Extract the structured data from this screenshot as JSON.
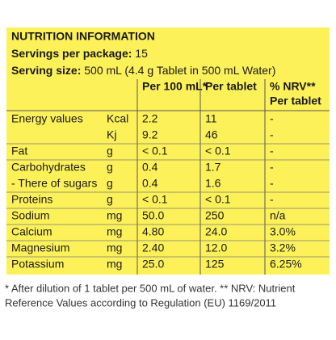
{
  "header": {
    "title": "NUTRITION INFORMATION",
    "servings_label": "Servings per package:",
    "servings_value": "15",
    "serving_size_label": "Serving size:",
    "serving_size_value": "500 mL (4.4 g Tablet in 500 mL Water)"
  },
  "table": {
    "columns": [
      "Per 100 mL*",
      "Per tablet",
      "% NRV**",
      "Per tablet"
    ],
    "rows": [
      [
        "Energy values",
        "Kcal",
        "2.2",
        "11",
        "-"
      ],
      [
        "",
        "Kj",
        "9.2",
        "46",
        "-"
      ],
      [
        "Fat",
        "g",
        "< 0.1",
        "< 0.1",
        "-"
      ],
      [
        "Carbohydrates",
        "g",
        "0.4",
        "1.7",
        "-"
      ],
      [
        "- There of sugars",
        "g",
        "0.4",
        "1.6",
        "-"
      ],
      [
        "Proteins",
        "g",
        "< 0.1",
        "< 0.1",
        "-"
      ],
      [
        "Sodium",
        "mg",
        "50.0",
        "250",
        "n/a"
      ],
      [
        "Calcium",
        "mg",
        "4.80",
        "24.0",
        "3.0%"
      ],
      [
        "Magnesium",
        "mg",
        "2.40",
        "12.0",
        "3.2%"
      ],
      [
        "Potassium",
        "mg",
        "25.0",
        "125",
        "6.25%"
      ]
    ]
  },
  "footnote": [
    "* After dilution of 1 tablet per 500 mL of water. ** NRV: Nutrient",
    "Reference Values according to Regulation (EU) 1169/2011"
  ]
}
